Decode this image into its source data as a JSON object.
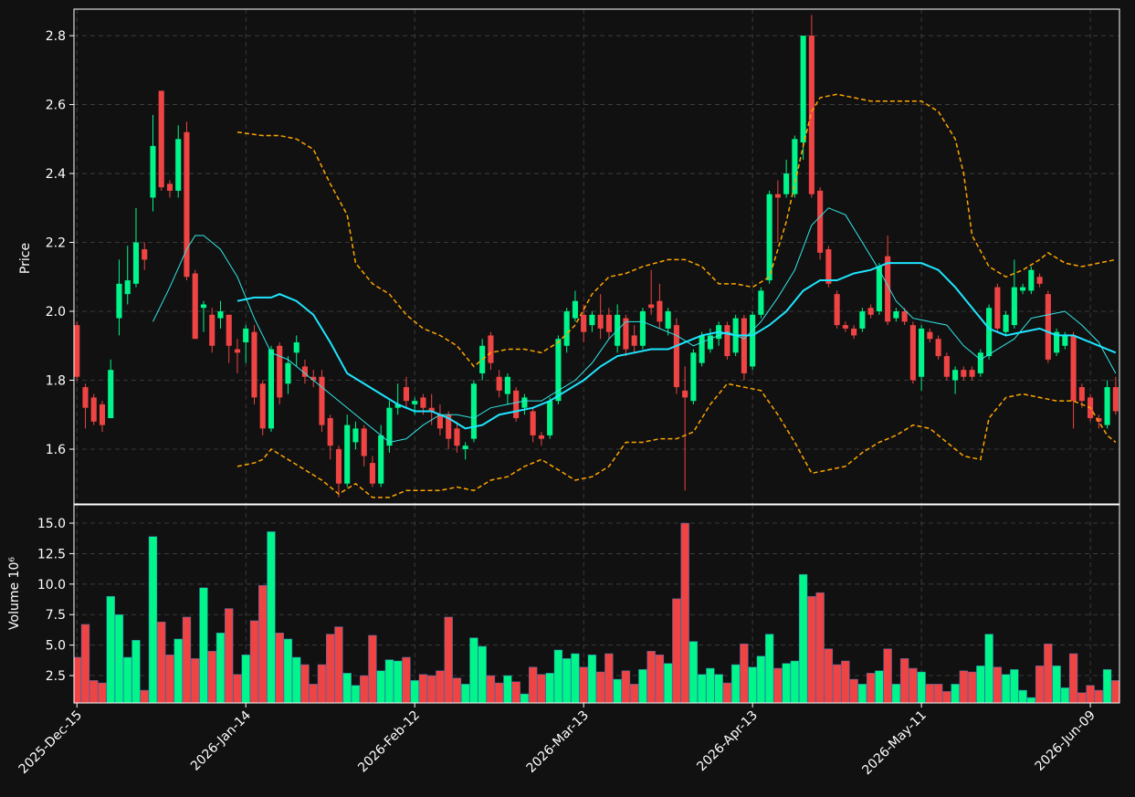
{
  "chart_data": [
    {
      "type": "candlestick",
      "ylabel": "Price",
      "xlim": [
        -0.35,
        123.45
      ],
      "xticks": [
        {
          "value": 0,
          "label": "2025-Dec-15"
        },
        {
          "value": 20,
          "label": "2026-Jan-14"
        },
        {
          "value": 40,
          "label": "2026-Feb-12"
        },
        {
          "value": 60,
          "label": "2026-Mar-13"
        },
        {
          "value": 80,
          "label": "2026-Apr-13"
        },
        {
          "value": 100,
          "label": "2026-May-11"
        },
        {
          "value": 120,
          "label": "2026-Jun-09"
        }
      ],
      "ylim": [
        1.441,
        2.877
      ],
      "yticks": [
        1.6,
        1.8,
        {
          "value": 2,
          "label": "2.0"
        },
        2.2,
        2.4,
        2.6,
        2.8
      ],
      "grid": true,
      "up_color": "#00f58a",
      "down_color": "#ef4444",
      "open": [
        1.96,
        1.78,
        1.75,
        1.73,
        1.69,
        1.98,
        2.05,
        2.08,
        2.18,
        2.33,
        2.64,
        2.37,
        2.35,
        2.52,
        2.11,
        2.01,
        1.99,
        1.98,
        1.99,
        1.89,
        1.91,
        1.94,
        1.79,
        1.66,
        1.9,
        1.79,
        1.88,
        1.84,
        1.81,
        1.81,
        1.69,
        1.6,
        1.5,
        1.62,
        1.66,
        1.56,
        1.5,
        1.61,
        1.72,
        1.78,
        1.73,
        1.75,
        1.72,
        1.7,
        1.7,
        1.66,
        1.6,
        1.63,
        1.82,
        1.93,
        1.81,
        1.76,
        1.77,
        1.72,
        1.71,
        1.64,
        1.64,
        1.74,
        1.9,
        1.98,
        1.99,
        1.96,
        1.99,
        1.99,
        1.9,
        1.98,
        1.93,
        1.9,
        2.02,
        2.03,
        1.95,
        1.96,
        1.77,
        1.74,
        1.85,
        1.89,
        1.92,
        1.96,
        1.88,
        1.98,
        1.84,
        1.99,
        2.09,
        2.34,
        2.34,
        2.34,
        2.49,
        2.8,
        2.35,
        2.18,
        2.05,
        1.96,
        1.95,
        1.95,
        2.01,
        2.0,
        2.16,
        1.98,
        2.0,
        1.96,
        1.81,
        1.94,
        1.92,
        1.87,
        1.8,
        1.83,
        1.83,
        1.82,
        1.87,
        2.07,
        1.94,
        1.96,
        2.06,
        2.06,
        2.1,
        2.05,
        1.88,
        1.9,
        1.93,
        1.78,
        1.75,
        1.69,
        1.67,
        1.78
      ],
      "high": [
        1.97,
        1.79,
        1.76,
        1.74,
        1.86,
        2.15,
        2.19,
        2.3,
        2.2,
        2.57,
        2.64,
        2.38,
        2.54,
        2.55,
        2.12,
        2.03,
        2.01,
        2.03,
        1.99,
        1.92,
        1.96,
        1.96,
        1.8,
        1.9,
        1.91,
        1.87,
        1.93,
        1.86,
        1.83,
        1.83,
        1.7,
        1.61,
        1.7,
        1.68,
        1.67,
        1.58,
        1.67,
        1.74,
        1.79,
        1.81,
        1.75,
        1.76,
        1.76,
        1.73,
        1.71,
        1.68,
        1.62,
        1.8,
        1.92,
        1.94,
        1.83,
        1.82,
        1.78,
        1.76,
        1.72,
        1.65,
        1.75,
        1.93,
        2.01,
        2.06,
        2.02,
        2.0,
        2.05,
        2.01,
        2.02,
        1.99,
        1.96,
        2.01,
        2.12,
        2.08,
        2.01,
        1.98,
        1.84,
        1.89,
        1.94,
        1.95,
        1.97,
        1.97,
        1.99,
        1.99,
        2.0,
        2.07,
        2.35,
        2.38,
        2.44,
        2.51,
        2.8,
        2.86,
        2.36,
        2.19,
        2.06,
        1.97,
        1.96,
        2.01,
        2.02,
        2.14,
        2.22,
        2.01,
        2.01,
        1.97,
        1.96,
        1.95,
        1.93,
        1.88,
        1.84,
        1.84,
        1.84,
        1.89,
        2.02,
        2.08,
        2.0,
        2.15,
        2.08,
        2.13,
        2.11,
        2.06,
        1.95,
        1.94,
        1.94,
        1.79,
        1.76,
        1.7,
        1.8,
        1.81
      ],
      "low": [
        1.8,
        1.66,
        1.67,
        1.65,
        1.69,
        1.93,
        2.02,
        2.07,
        2.12,
        2.29,
        2.35,
        2.33,
        2.33,
        2.09,
        1.92,
        1.94,
        1.88,
        1.95,
        1.85,
        1.82,
        1.85,
        1.73,
        1.64,
        1.65,
        1.73,
        1.76,
        1.84,
        1.79,
        1.78,
        1.65,
        1.57,
        1.46,
        1.49,
        1.6,
        1.55,
        1.49,
        1.49,
        1.59,
        1.7,
        1.72,
        1.7,
        1.7,
        1.67,
        1.64,
        1.6,
        1.59,
        1.57,
        1.62,
        1.8,
        1.83,
        1.75,
        1.73,
        1.68,
        1.7,
        1.62,
        1.61,
        1.63,
        1.73,
        1.88,
        1.97,
        1.91,
        1.94,
        1.92,
        1.92,
        1.88,
        1.87,
        1.88,
        1.89,
        1.99,
        1.95,
        1.93,
        1.76,
        1.48,
        1.73,
        1.84,
        1.88,
        1.9,
        1.86,
        1.87,
        1.8,
        1.83,
        1.98,
        2.08,
        2.2,
        2.33,
        2.33,
        2.44,
        2.33,
        2.15,
        2.07,
        1.95,
        1.94,
        1.92,
        1.94,
        1.98,
        1.99,
        1.96,
        1.97,
        1.96,
        1.79,
        1.77,
        1.91,
        1.86,
        1.8,
        1.76,
        1.8,
        1.8,
        1.81,
        1.86,
        1.94,
        1.93,
        1.95,
        2.05,
        2.05,
        2.07,
        1.85,
        1.87,
        1.89,
        1.66,
        1.72,
        1.68,
        1.66,
        1.66,
        1.7
      ],
      "close": [
        1.81,
        1.72,
        1.68,
        1.67,
        1.83,
        2.08,
        2.09,
        2.2,
        2.15,
        2.48,
        2.36,
        2.35,
        2.5,
        2.1,
        1.92,
        2.02,
        1.9,
        2.0,
        1.9,
        1.88,
        1.95,
        1.75,
        1.66,
        1.89,
        1.75,
        1.85,
        1.91,
        1.81,
        1.8,
        1.67,
        1.61,
        1.5,
        1.67,
        1.66,
        1.58,
        1.5,
        1.64,
        1.72,
        1.73,
        1.74,
        1.74,
        1.72,
        1.71,
        1.66,
        1.63,
        1.61,
        1.61,
        1.79,
        1.9,
        1.85,
        1.77,
        1.81,
        1.69,
        1.75,
        1.64,
        1.63,
        1.74,
        1.92,
        2.0,
        2.03,
        1.94,
        1.99,
        1.95,
        1.94,
        1.99,
        1.89,
        1.9,
        2.0,
        2.01,
        1.97,
        2.0,
        1.78,
        1.75,
        1.88,
        1.93,
        1.93,
        1.96,
        1.87,
        1.98,
        1.82,
        1.99,
        2.06,
        2.34,
        2.33,
        2.4,
        2.5,
        2.8,
        2.34,
        2.17,
        2.08,
        1.96,
        1.95,
        1.93,
        2.0,
        1.99,
        2.13,
        1.97,
        2.0,
        1.97,
        1.8,
        1.95,
        1.92,
        1.87,
        1.81,
        1.83,
        1.81,
        1.81,
        1.88,
        2.01,
        1.95,
        1.99,
        2.07,
        2.07,
        2.12,
        2.08,
        1.86,
        1.94,
        1.93,
        1.74,
        1.74,
        1.69,
        1.68,
        1.78,
        1.71
      ],
      "series": [
        {
          "color": "#33e6e6",
          "width": 1,
          "style": "solid",
          "x": [
            9,
            11,
            13,
            14,
            15,
            17,
            19,
            21,
            23,
            25,
            27,
            29,
            31,
            33,
            35,
            37,
            39,
            41,
            43,
            45,
            47,
            49,
            51,
            53,
            55,
            57,
            59,
            61,
            63,
            65,
            67,
            69,
            71,
            73,
            75,
            77,
            79,
            81,
            83,
            85,
            87,
            89,
            91,
            93,
            95,
            97,
            99,
            101,
            103,
            105,
            107,
            109,
            111,
            113,
            115,
            117,
            119,
            121,
            123
          ],
          "values": [
            1.97,
            2.07,
            2.18,
            2.22,
            2.22,
            2.18,
            2.1,
            1.98,
            1.88,
            1.86,
            1.82,
            1.78,
            1.74,
            1.7,
            1.66,
            1.62,
            1.63,
            1.67,
            1.7,
            1.7,
            1.69,
            1.72,
            1.73,
            1.74,
            1.74,
            1.77,
            1.8,
            1.85,
            1.92,
            1.97,
            1.97,
            1.95,
            1.93,
            1.9,
            1.92,
            1.94,
            1.92,
            1.97,
            2.04,
            2.12,
            2.25,
            2.3,
            2.28,
            2.2,
            2.12,
            2.03,
            1.98,
            1.97,
            1.96,
            1.9,
            1.86,
            1.89,
            1.92,
            1.98,
            1.99,
            2.0,
            1.96,
            1.91,
            1.82
          ]
        },
        {
          "color": "#1ee6ff",
          "width": 2,
          "style": "solid",
          "x": [
            19,
            21,
            23,
            24,
            26,
            28,
            30,
            32,
            34,
            36,
            38,
            40,
            42,
            44,
            46,
            48,
            50,
            52,
            54,
            56,
            58,
            60,
            62,
            64,
            66,
            68,
            70,
            72,
            74,
            76,
            78,
            80,
            82,
            84,
            86,
            88,
            90,
            92,
            94,
            96,
            98,
            100,
            102,
            104,
            106,
            108,
            110,
            112,
            114,
            116,
            118,
            120,
            122,
            123
          ],
          "values": [
            2.03,
            2.04,
            2.04,
            2.05,
            2.03,
            1.99,
            1.91,
            1.82,
            1.79,
            1.76,
            1.73,
            1.71,
            1.71,
            1.69,
            1.66,
            1.67,
            1.7,
            1.71,
            1.72,
            1.74,
            1.77,
            1.8,
            1.84,
            1.87,
            1.88,
            1.89,
            1.89,
            1.91,
            1.93,
            1.94,
            1.93,
            1.93,
            1.96,
            2.0,
            2.06,
            2.09,
            2.09,
            2.11,
            2.12,
            2.14,
            2.14,
            2.14,
            2.12,
            2.07,
            2.01,
            1.95,
            1.93,
            1.94,
            1.95,
            1.93,
            1.93,
            1.91,
            1.89,
            1.88
          ]
        },
        {
          "color": "#ffa500",
          "width": 1.5,
          "style": "dashed",
          "x": [
            19,
            22,
            24,
            26,
            28,
            30,
            32,
            33,
            35,
            37,
            39,
            41,
            43,
            45,
            47,
            49,
            51,
            53,
            55,
            57,
            59,
            61,
            63,
            65,
            67,
            70,
            72,
            74,
            76,
            78,
            80,
            82,
            84,
            86,
            87,
            88,
            90,
            92,
            94,
            96,
            98,
            100,
            102,
            104,
            105,
            106,
            108,
            110,
            112,
            114,
            115,
            117,
            119,
            121,
            123
          ],
          "values": [
            2.52,
            2.51,
            2.51,
            2.5,
            2.47,
            2.37,
            2.28,
            2.14,
            2.08,
            2.05,
            1.99,
            1.95,
            1.93,
            1.9,
            1.84,
            1.88,
            1.89,
            1.89,
            1.88,
            1.91,
            1.96,
            2.05,
            2.1,
            2.11,
            2.13,
            2.15,
            2.15,
            2.13,
            2.08,
            2.08,
            2.07,
            2.1,
            2.26,
            2.48,
            2.58,
            2.62,
            2.63,
            2.62,
            2.61,
            2.61,
            2.61,
            2.61,
            2.58,
            2.5,
            2.4,
            2.22,
            2.13,
            2.1,
            2.12,
            2.15,
            2.17,
            2.14,
            2.13,
            2.14,
            2.15
          ]
        },
        {
          "color": "#ffa500",
          "width": 1.5,
          "style": "dashed",
          "x": [
            19,
            21,
            22,
            23,
            25,
            27,
            29,
            31,
            33,
            35,
            37,
            39,
            41,
            43,
            45,
            47,
            49,
            51,
            53,
            55,
            57,
            59,
            61,
            63,
            65,
            67,
            69,
            71,
            73,
            75,
            77,
            79,
            81,
            83,
            85,
            87,
            89,
            91,
            93,
            95,
            97,
            99,
            101,
            103,
            105,
            107,
            108,
            110,
            112,
            114,
            116,
            118,
            120,
            122,
            123
          ],
          "values": [
            1.55,
            1.56,
            1.57,
            1.6,
            1.57,
            1.54,
            1.51,
            1.47,
            1.5,
            1.46,
            1.46,
            1.48,
            1.48,
            1.48,
            1.49,
            1.48,
            1.51,
            1.52,
            1.55,
            1.57,
            1.54,
            1.51,
            1.52,
            1.55,
            1.62,
            1.62,
            1.63,
            1.63,
            1.65,
            1.73,
            1.79,
            1.78,
            1.77,
            1.7,
            1.62,
            1.53,
            1.54,
            1.55,
            1.59,
            1.62,
            1.64,
            1.67,
            1.66,
            1.62,
            1.58,
            1.57,
            1.69,
            1.75,
            1.76,
            1.75,
            1.74,
            1.74,
            1.72,
            1.64,
            1.62
          ]
        }
      ]
    },
    {
      "type": "bar",
      "ylabel": "Volume  10⁶",
      "ylim": [
        0.255,
        16.5
      ],
      "yticks": [
        2.5,
        {
          "value": 5,
          "label": "5.0"
        },
        7.5,
        {
          "value": 10,
          "label": "10.0"
        },
        12.5,
        {
          "value": 15,
          "label": "15.0"
        }
      ],
      "grid": true,
      "values": [
        4.0,
        6.7,
        2.1,
        1.9,
        9.0,
        7.5,
        4.0,
        5.4,
        1.3,
        13.9,
        6.9,
        4.2,
        5.5,
        7.3,
        3.9,
        9.7,
        4.5,
        6.0,
        8.0,
        2.6,
        4.2,
        7.0,
        9.9,
        14.3,
        6.0,
        5.5,
        4.0,
        3.4,
        1.8,
        3.4,
        5.9,
        6.5,
        2.7,
        1.7,
        2.5,
        5.8,
        2.9,
        3.8,
        3.7,
        4.0,
        2.1,
        2.6,
        2.5,
        2.9,
        7.3,
        2.3,
        1.8,
        5.6,
        4.9,
        2.5,
        1.9,
        2.5,
        2.0,
        1.0,
        3.2,
        2.6,
        2.7,
        4.6,
        3.9,
        4.3,
        3.2,
        4.2,
        2.8,
        4.3,
        2.2,
        2.9,
        1.8,
        3.0,
        4.5,
        4.2,
        3.5,
        8.8,
        15.0,
        5.3,
        2.6,
        3.1,
        2.6,
        1.9,
        3.4,
        5.1,
        3.2,
        4.1,
        5.9,
        3.1,
        3.5,
        3.7,
        10.8,
        9.0,
        9.3,
        4.7,
        3.4,
        3.7,
        2.2,
        1.8,
        2.7,
        2.9,
        4.7,
        1.8,
        3.9,
        3.1,
        2.8,
        1.8,
        1.8,
        1.2,
        1.8,
        2.9,
        2.8,
        3.3,
        5.9,
        3.2,
        2.6,
        3.0,
        1.3,
        0.7,
        3.3,
        5.1,
        3.3,
        1.5,
        4.3,
        1.1,
        1.7,
        1.3,
        3.0,
        2.1
      ]
    }
  ]
}
